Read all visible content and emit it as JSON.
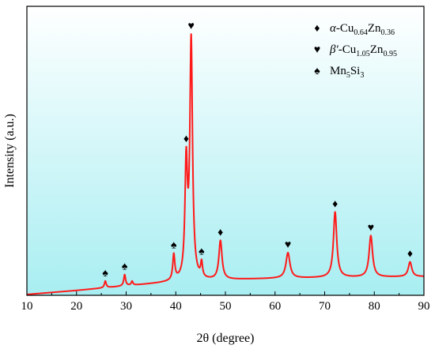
{
  "chart_data": {
    "type": "line",
    "title": "",
    "xlabel": "2θ (degree)",
    "ylabel": "Intensity (a.u.)",
    "xlim": [
      10,
      90
    ],
    "ylim": [
      0,
      100
    ],
    "xticks": [
      "10",
      "20",
      "30",
      "40",
      "50",
      "60",
      "70",
      "80",
      "90"
    ],
    "grid": false,
    "legend_position": "top-right",
    "background_gradient": [
      "#ffffff",
      "#a8eef2"
    ],
    "line_color": "#ff1a1a",
    "series": [
      {
        "baseline": [
          [
            10,
            0.3
          ],
          [
            20,
            1.8
          ],
          [
            30,
            3.5
          ],
          [
            40,
            5.0
          ],
          [
            50,
            5.8
          ],
          [
            60,
            6.3
          ],
          [
            70,
            6.6
          ],
          [
            80,
            6.8
          ],
          [
            90,
            7.0
          ]
        ],
        "peaks": [
          {
            "x": 25.8,
            "y": 2.5,
            "width": 0.22,
            "marker": "spade"
          },
          {
            "x": 29.7,
            "y": 4.2,
            "width": 0.22,
            "marker": "spade"
          },
          {
            "x": 31.2,
            "y": 1.5,
            "width": 0.2,
            "marker": ""
          },
          {
            "x": 39.6,
            "y": 9.5,
            "width": 0.25,
            "marker": "spade"
          },
          {
            "x": 42.1,
            "y": 42.0,
            "width": 0.3,
            "marker": "diamond"
          },
          {
            "x": 43.1,
            "y": 89.0,
            "width": 0.32,
            "marker": "heart"
          },
          {
            "x": 45.2,
            "y": 5.5,
            "width": 0.22,
            "marker": "spade"
          },
          {
            "x": 49.0,
            "y": 14.5,
            "width": 0.38,
            "marker": "diamond"
          },
          {
            "x": 62.6,
            "y": 9.5,
            "width": 0.48,
            "marker": "heart"
          },
          {
            "x": 72.1,
            "y": 24.5,
            "width": 0.4,
            "marker": "diamond"
          },
          {
            "x": 79.3,
            "y": 15.5,
            "width": 0.42,
            "marker": "heart"
          },
          {
            "x": 87.2,
            "y": 5.5,
            "width": 0.42,
            "marker": "diamond"
          }
        ]
      }
    ],
    "legend": [
      {
        "glyph": "♦",
        "prefix": "α-Cu",
        "sub1": "0.64",
        "mid": "Zn",
        "sub2": "0.36"
      },
      {
        "glyph": "♥",
        "prefix": "β′-Cu",
        "sub1": "1.05",
        "mid": "Zn",
        "sub2": "0.95"
      },
      {
        "glyph": "♠",
        "prefix": "Mn",
        "sub1": "5",
        "mid": "Si",
        "sub2": "3"
      }
    ],
    "marker_glyphs": {
      "diamond": "♦",
      "heart": "♥",
      "spade": "♠"
    }
  }
}
